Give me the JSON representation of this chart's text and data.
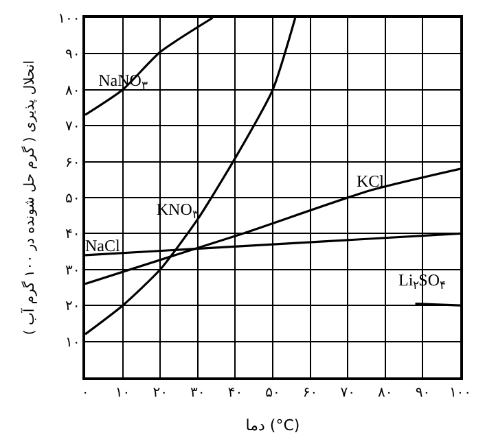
{
  "chart_data": {
    "type": "line",
    "xlabel": "دما (°C)",
    "ylabel": "انحلال پذیری ( گرم حل شونده در ۱۰۰ گرم آب )",
    "series": [
      {
        "name": "NaNO$_{۳}$",
        "color": "#000000",
        "x": [
          0,
          10,
          20,
          34
        ],
        "values": [
          73,
          80,
          90.5,
          100
        ]
      },
      {
        "name": "KNO$_{۳}$",
        "color": "#000000",
        "x": [
          0,
          10,
          20,
          30,
          40,
          50,
          56
        ],
        "values": [
          12,
          20,
          30,
          44,
          61,
          80,
          100
        ]
      },
      {
        "name": "KCl",
        "color": "#000000",
        "x": [
          0,
          42,
          76,
          100
        ],
        "values": [
          26,
          40,
          52,
          58
        ]
      },
      {
        "name": "NaCl",
        "color": "#000000",
        "x": [
          0,
          100
        ],
        "values": [
          34,
          40
        ]
      },
      {
        "name": "Li$_{۲}$SO$_{۴}$",
        "color": "#000000",
        "x": [
          88,
          100
        ],
        "values": [
          20.5,
          20
        ]
      }
    ],
    "xlim": [
      0,
      100
    ],
    "ylim": [
      0,
      100
    ],
    "xticks": [
      {
        "value": 0,
        "label": "۰"
      },
      {
        "value": 10,
        "label": "۱۰"
      },
      {
        "value": 20,
        "label": "۲۰"
      },
      {
        "value": 30,
        "label": "۳۰"
      },
      {
        "value": 40,
        "label": "۴۰"
      },
      {
        "value": 50,
        "label": "۵۰"
      },
      {
        "value": 60,
        "label": "۶۰"
      },
      {
        "value": 70,
        "label": "۷۰"
      },
      {
        "value": 80,
        "label": "۸۰"
      },
      {
        "value": 90,
        "label": "۹۰"
      },
      {
        "value": 100,
        "label": "۱۰۰"
      }
    ],
    "yticks": [
      {
        "value": 0,
        "label": null
      },
      {
        "value": 10,
        "label": "۱۰"
      },
      {
        "value": 20,
        "label": "۲۰"
      },
      {
        "value": 30,
        "label": "۳۰"
      },
      {
        "value": 40,
        "label": "۴۰"
      },
      {
        "value": 50,
        "label": "۵۰"
      },
      {
        "value": 60,
        "label": "۶۰"
      },
      {
        "value": 70,
        "label": "۷۰"
      },
      {
        "value": 80,
        "label": "۸۰"
      },
      {
        "value": 90,
        "label": "۹۰"
      },
      {
        "value": 100,
        "label": "۱۰۰"
      }
    ],
    "grid": true,
    "legend": false,
    "marker": "none",
    "line_style": "solid"
  }
}
